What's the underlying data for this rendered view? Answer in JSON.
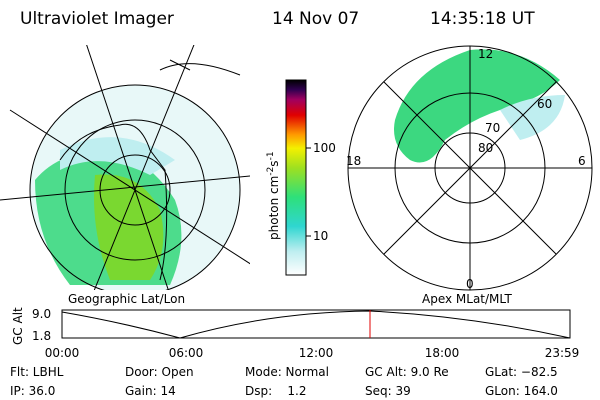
{
  "header": {
    "title": "Ultraviolet Imager",
    "date": "14 Nov 07",
    "time": "14:35:18 UT"
  },
  "left_panel": {
    "caption": "Geographic Lat/Lon"
  },
  "right_panel": {
    "caption": "Apex MLat/MLT",
    "mlt_labels": [
      "12",
      "18",
      "6",
      "0"
    ],
    "lat_labels": [
      "60",
      "70",
      "80"
    ]
  },
  "colorbar": {
    "ticks": [
      "100",
      "10"
    ],
    "unit": "photon cm",
    "unit_exp1": "-2",
    "unit_mid": "s",
    "unit_exp2": "-1"
  },
  "altitude_plot": {
    "ylabel": "GC Alt",
    "yticks": [
      "9.0",
      "1.8"
    ],
    "xticks": [
      "00:00",
      "06:00",
      "12:00",
      "18:00",
      "23:59"
    ]
  },
  "info": {
    "rows": [
      [
        "Flt: LBHL",
        "Door: Open",
        "Mode: Normal",
        "GC Alt: 9.0 Re",
        "GLat: −82.5"
      ],
      [
        "IP: 36.0",
        "Gain: 14",
        "Dsp:    1.2",
        "Seq: 39",
        "GLon: 164.0"
      ]
    ]
  }
}
